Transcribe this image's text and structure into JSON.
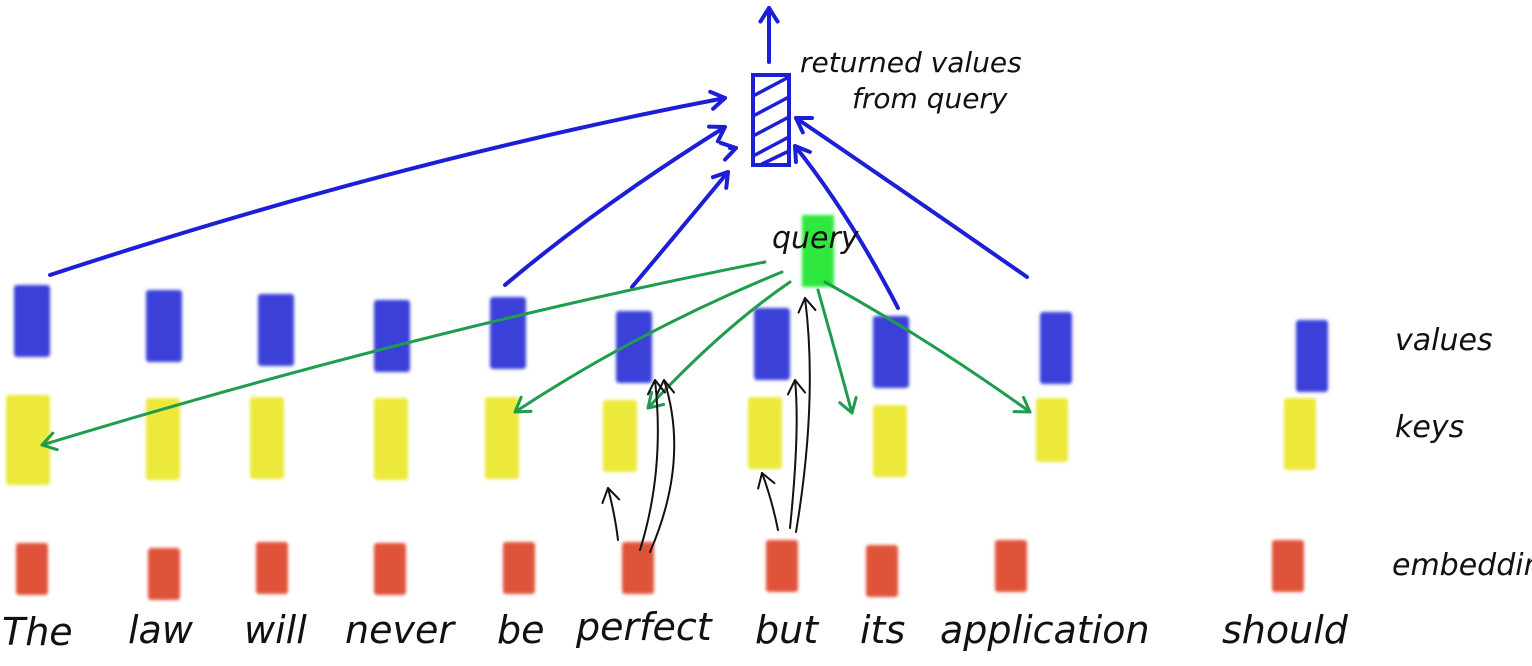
{
  "colors": {
    "values": "#3a3fd9",
    "keys": "#ece93a",
    "embedding": "#e0533a",
    "query": "#2ee83c",
    "value_arrow": "#1d1fd6",
    "key_arrow": "#1f9c4e",
    "black_arrow": "#111111"
  },
  "words": [
    "The",
    "law",
    "will",
    "never",
    "be",
    "perfect",
    "but",
    "its",
    "application",
    "should"
  ],
  "row_labels": {
    "values": "values",
    "keys": "keys",
    "embedding": "embedding"
  },
  "query_label": "query",
  "output_label_line1": "returned values",
  "output_label_line2": "from query"
}
